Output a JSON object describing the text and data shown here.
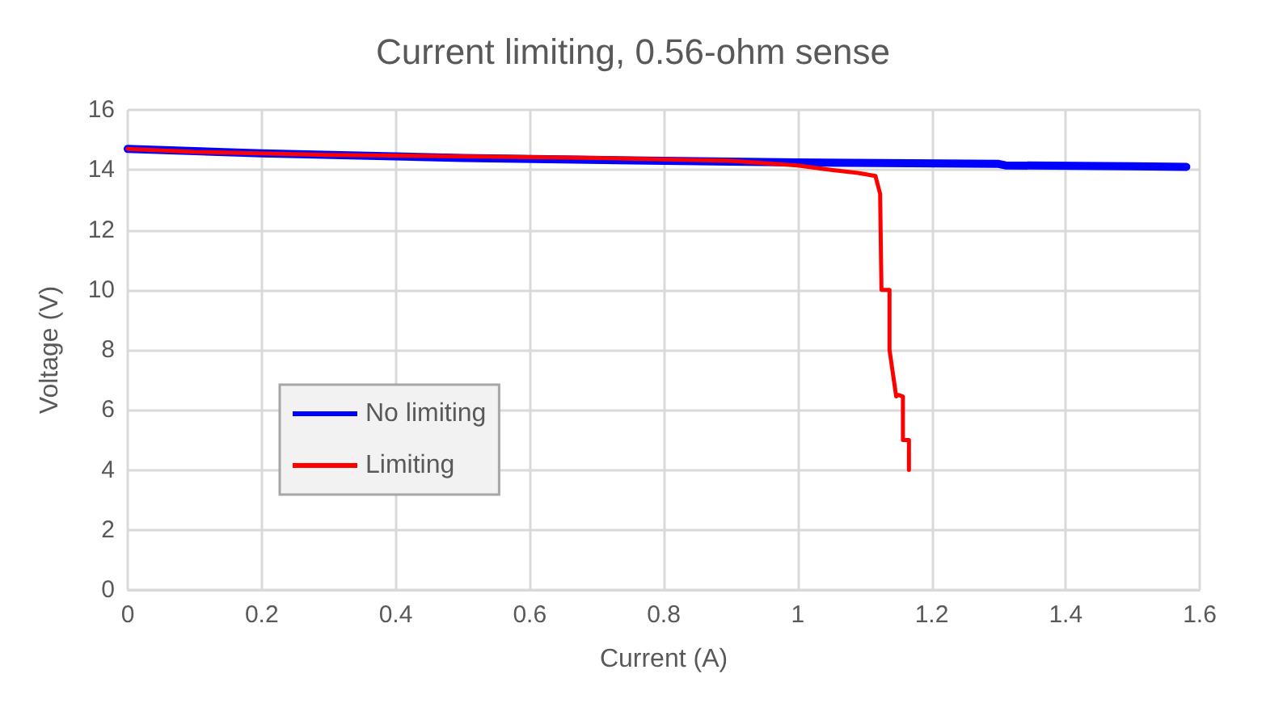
{
  "chart_data": {
    "type": "line",
    "title": "Current limiting, 0.56-ohm sense",
    "xlabel": "Current (A)",
    "ylabel": "Voltage (V)",
    "xlim": [
      0,
      1.6
    ],
    "xticks": [
      0,
      0.2,
      0.4,
      0.6,
      0.8,
      1,
      1.2,
      1.4,
      1.6
    ],
    "ylim": [
      0,
      16
    ],
    "yticks": [
      0,
      2,
      4,
      6,
      8,
      10,
      12,
      14,
      16
    ],
    "grid": true,
    "legend": "left",
    "marker": "none",
    "line_style": "solid",
    "series": [
      {
        "name": "No limiting",
        "color": "#0000ff",
        "x": [
          0,
          0.2,
          0.5,
          0.8,
          1.0,
          1.3,
          1.31,
          1.5,
          1.58
        ],
        "values": [
          14.7,
          14.55,
          14.4,
          14.3,
          14.25,
          14.2,
          14.15,
          14.12,
          14.1
        ]
      },
      {
        "name": "Limiting",
        "color": "#ff0000",
        "x": [
          0,
          0.1,
          0.3,
          0.5,
          0.7,
          0.9,
          1.0,
          1.05,
          1.09,
          1.116,
          1.123,
          1.125,
          1.137,
          1.137,
          1.147,
          1.15,
          1.157,
          1.157,
          1.166,
          1.166
        ],
        "values": [
          14.7,
          14.6,
          14.5,
          14.45,
          14.4,
          14.3,
          14.15,
          14.0,
          13.9,
          13.8,
          13.2,
          10.0,
          10.0,
          8.0,
          6.45,
          6.5,
          6.45,
          5.0,
          5.0,
          4.0
        ]
      }
    ]
  }
}
